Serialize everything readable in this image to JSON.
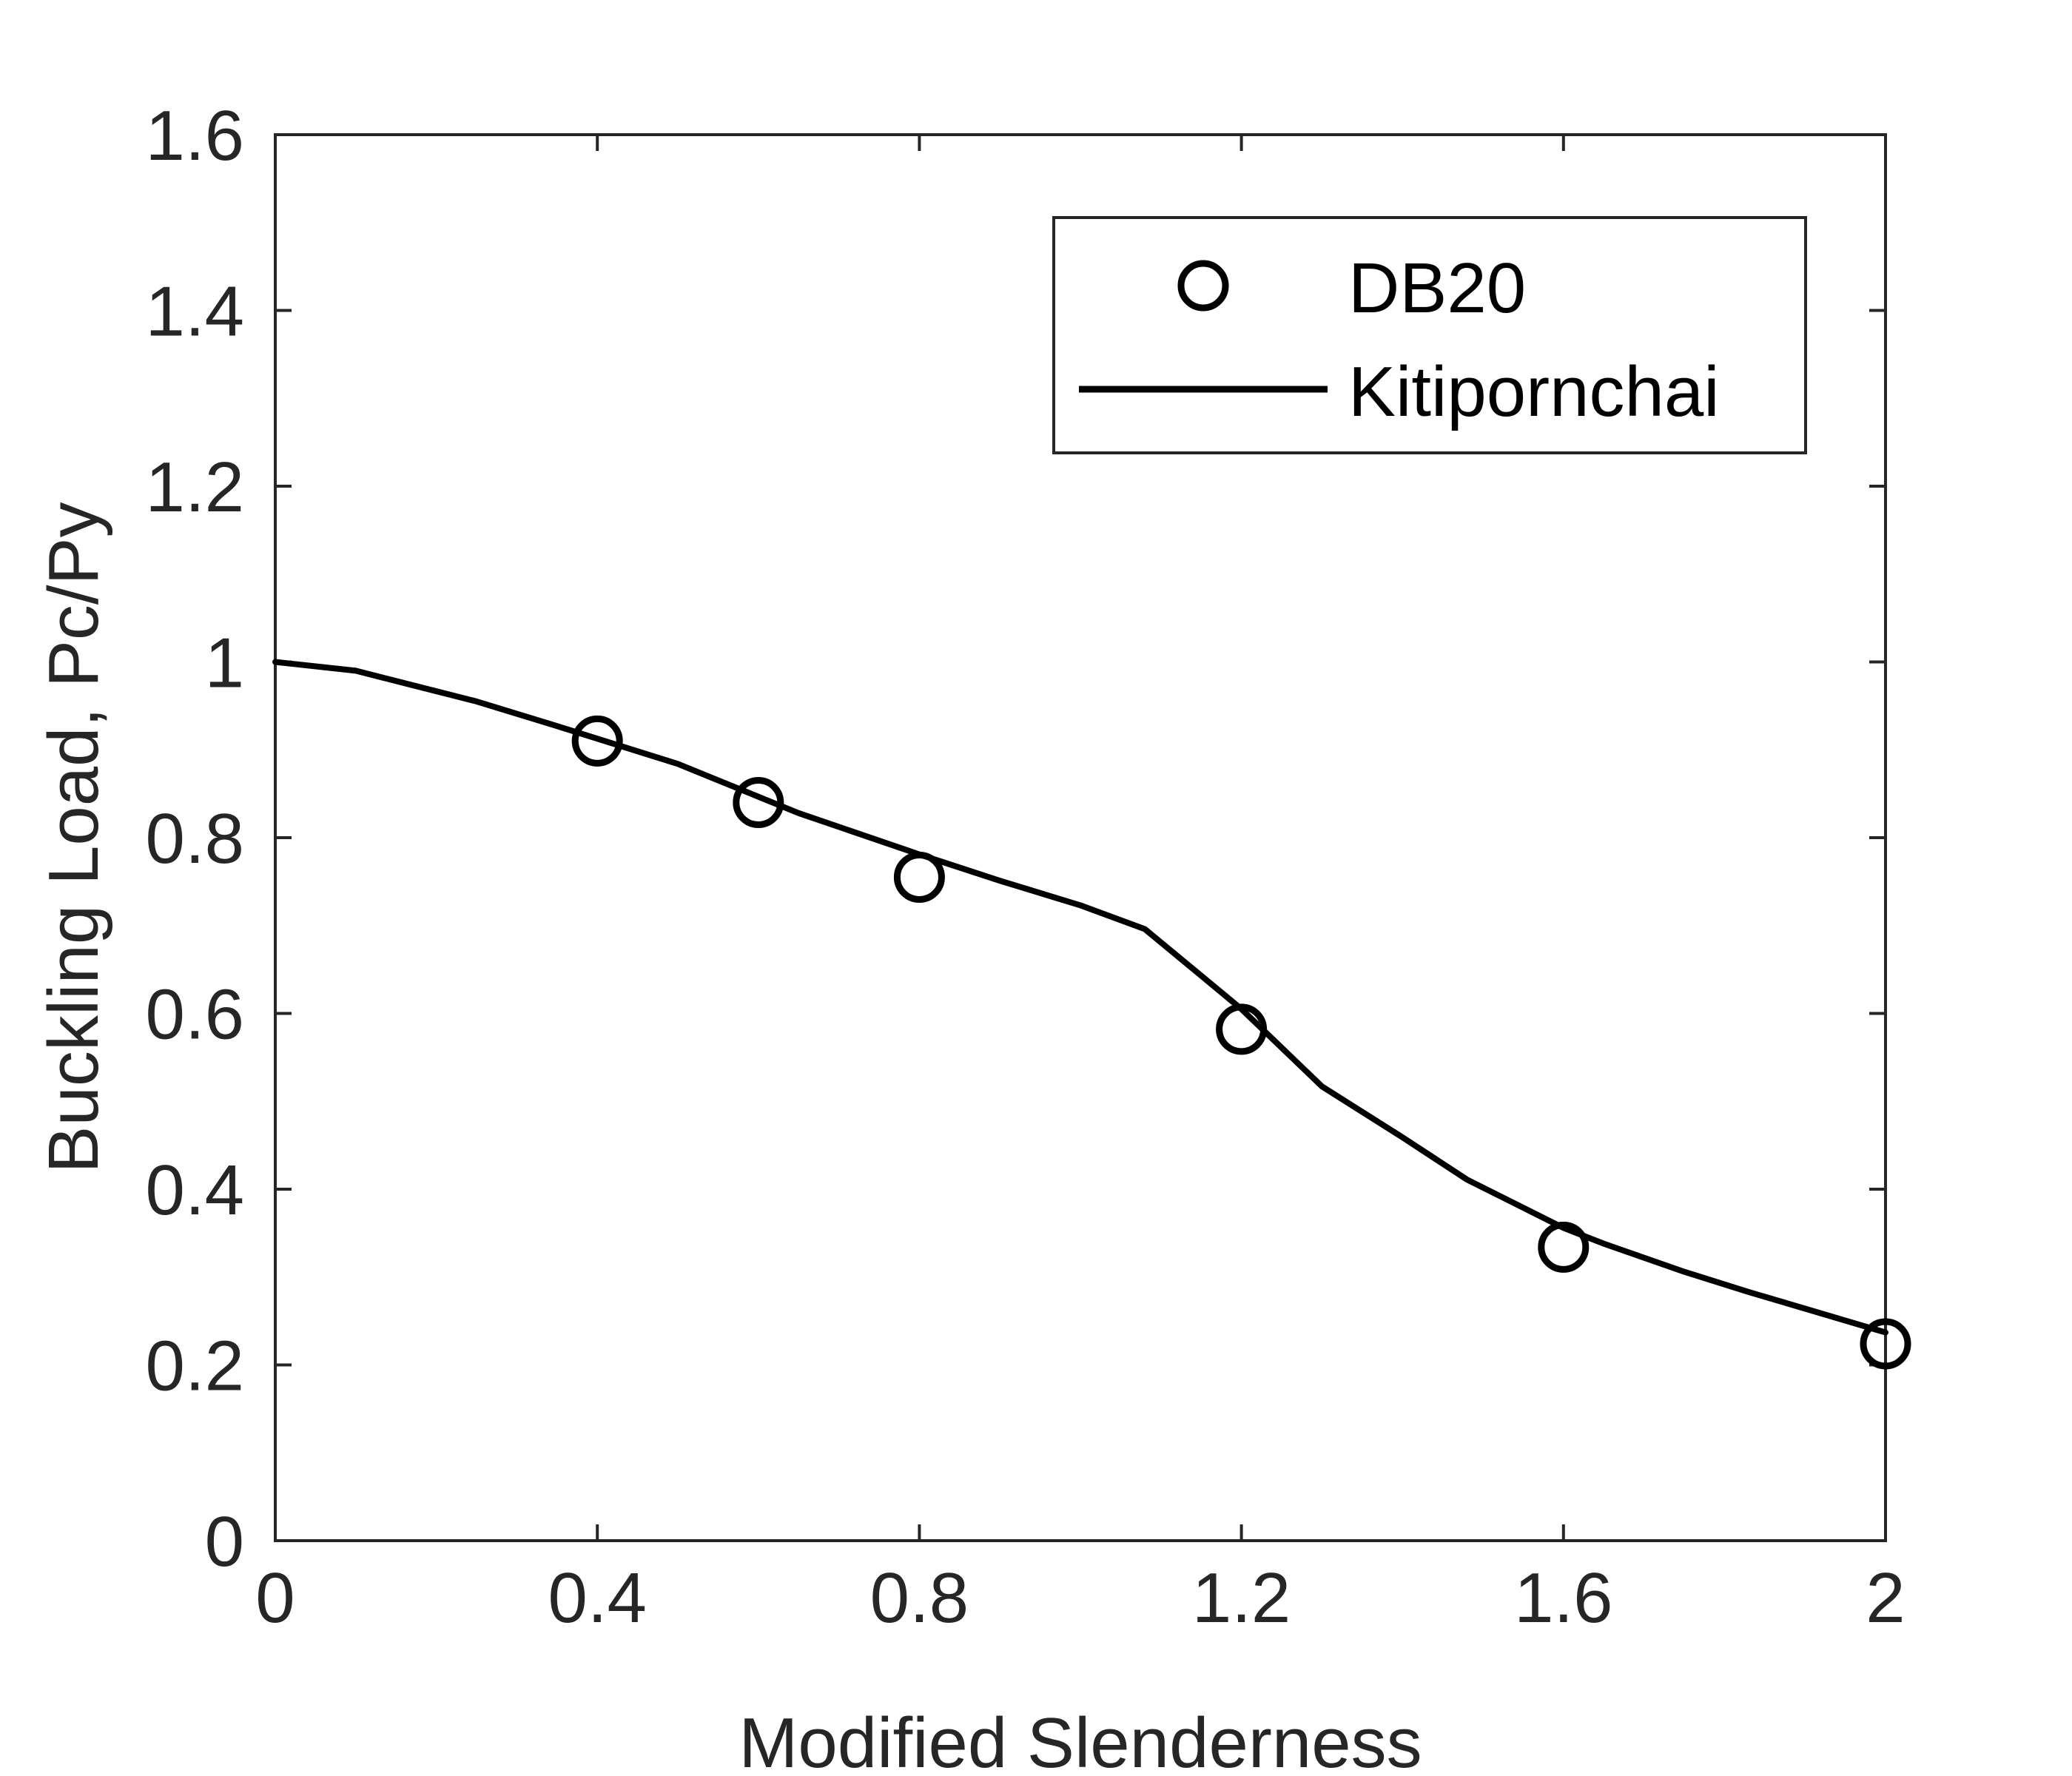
{
  "chart_data": {
    "type": "line",
    "xlabel": "Modified Slenderness",
    "ylabel": "Buckling Load, Pc/Py",
    "xlim": [
      0,
      2
    ],
    "ylim": [
      0,
      1.6
    ],
    "xticks": [
      0,
      0.4,
      0.8,
      1.2,
      1.6,
      2
    ],
    "xtick_labels": [
      "0",
      "0.4",
      "0.8",
      "1.2",
      "1.6",
      "2"
    ],
    "yticks": [
      0,
      0.2,
      0.4,
      0.6,
      0.8,
      1,
      1.2,
      1.4,
      1.6
    ],
    "ytick_labels": [
      "0",
      "0.2",
      "0.4",
      "0.6",
      "0.8",
      "1",
      "1.2",
      "1.4",
      "1.6"
    ],
    "grid": false,
    "legend_position": "top-right",
    "series": [
      {
        "name": "DB20",
        "kind": "scatter",
        "marker": "circle",
        "color": "#000000",
        "x": [
          0.4,
          0.6,
          0.8,
          1.2,
          1.6,
          2.0
        ],
        "y": [
          0.91,
          0.84,
          0.755,
          0.582,
          0.334,
          0.224
        ]
      },
      {
        "name": "Kitipornchai",
        "kind": "line",
        "color": "#000000",
        "x": [
          0,
          0.1,
          0.25,
          0.35,
          0.5,
          0.65,
          0.8,
          0.9,
          1.0,
          1.08,
          1.15,
          1.2,
          1.3,
          1.4,
          1.48,
          1.6,
          1.65,
          1.75,
          1.83,
          2.0
        ],
        "y": [
          1.0,
          0.99,
          0.955,
          0.927,
          0.884,
          0.828,
          0.781,
          0.751,
          0.723,
          0.696,
          0.643,
          0.605,
          0.517,
          0.459,
          0.411,
          0.356,
          0.338,
          0.306,
          0.283,
          0.237
        ]
      }
    ]
  }
}
